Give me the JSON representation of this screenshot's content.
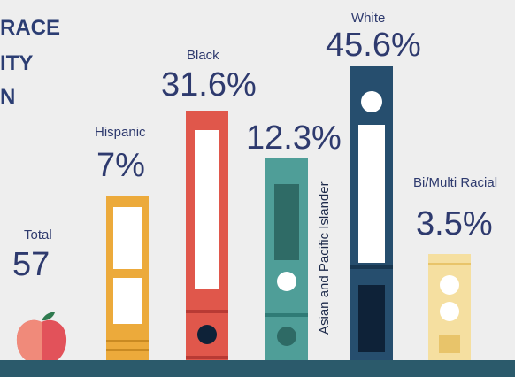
{
  "title": {
    "line1": "RACE",
    "line2": "ITY",
    "line3": "N"
  },
  "total": {
    "label": "Total",
    "value": "57"
  },
  "chart_data": {
    "type": "bar",
    "categories": [
      "Hispanic",
      "Black",
      "Asian and Pacific Islander",
      "White",
      "Bi/Multi Racial"
    ],
    "values": [
      7,
      31.6,
      12.3,
      45.6,
      3.5
    ],
    "data_labels": [
      "7%",
      "31.6%",
      "12.3%",
      "45.6%",
      "3.5%"
    ],
    "colors": [
      "#ecaa3b",
      "#e0574b",
      "#4f9e98",
      "#264e6e",
      "#f5dfa0"
    ],
    "total": 57,
    "title": "",
    "xlabel": "",
    "ylabel": ""
  }
}
